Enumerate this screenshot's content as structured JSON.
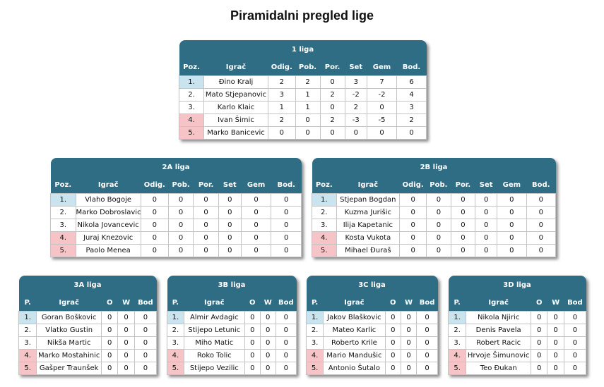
{
  "title": "Piramidalni pregled lige",
  "leagues": [
    {
      "name": "1 liga",
      "headers": [
        "Poz.",
        "Igrač",
        "Odig.",
        "Pob.",
        "Por.",
        "Set",
        "Gem",
        "Bod."
      ],
      "rows": [
        [
          "1.",
          "Đino Kralj",
          2,
          2,
          0,
          3,
          7,
          6
        ],
        [
          "2.",
          "Mato Stjepanovic",
          3,
          1,
          2,
          -2,
          -2,
          4
        ],
        [
          "3.",
          "Karlo Klaic",
          1,
          1,
          0,
          2,
          0,
          3
        ],
        [
          "4.",
          "Ivan Šimic",
          2,
          0,
          2,
          -3,
          -5,
          2
        ],
        [
          "5.",
          "Marko Banicevic",
          0,
          0,
          0,
          0,
          0,
          0
        ]
      ]
    },
    {
      "name": "2A liga",
      "headers": [
        "Poz.",
        "Igrač",
        "Odig.",
        "Pob.",
        "Por.",
        "Set",
        "Gem",
        "Bod."
      ],
      "rows": [
        [
          "1.",
          "Vlaho Bogoje",
          0,
          0,
          0,
          0,
          0,
          0
        ],
        [
          "2.",
          "Marko Dobroslavic",
          0,
          0,
          0,
          0,
          0,
          0
        ],
        [
          "3.",
          "Nikola Jovancevic",
          0,
          0,
          0,
          0,
          0,
          0
        ],
        [
          "4.",
          "Juraj Knezovic",
          0,
          0,
          0,
          0,
          0,
          0
        ],
        [
          "5.",
          "Paolo Menea",
          0,
          0,
          0,
          0,
          0,
          0
        ]
      ]
    },
    {
      "name": "2B liga",
      "headers": [
        "Poz.",
        "Igrač",
        "Odig.",
        "Pob.",
        "Por.",
        "Set",
        "Gem",
        "Bod."
      ],
      "rows": [
        [
          "1.",
          "Stjepan Bogdan",
          0,
          0,
          0,
          0,
          0,
          0
        ],
        [
          "2.",
          "Kuzma Jurišic",
          0,
          0,
          0,
          0,
          0,
          0
        ],
        [
          "3.",
          "Ilija Kapetanic",
          0,
          0,
          0,
          0,
          0,
          0
        ],
        [
          "4.",
          "Kosta Vukota",
          0,
          0,
          0,
          0,
          0,
          0
        ],
        [
          "5.",
          "Mihael Đuraš",
          0,
          0,
          0,
          0,
          0,
          0
        ]
      ]
    },
    {
      "name": "3A liga",
      "headers": [
        "P.",
        "Igrač",
        "O",
        "W",
        "Bod"
      ],
      "rows": [
        [
          "1.",
          "Goran Boškovic",
          0,
          0,
          0
        ],
        [
          "2.",
          "Vlatko Gustin",
          0,
          0,
          0
        ],
        [
          "3.",
          "Nikša Martic",
          0,
          0,
          0
        ],
        [
          "4.",
          "Marko Mostahinic",
          0,
          0,
          0
        ],
        [
          "5.",
          "Gašper Traunšek",
          0,
          0,
          0
        ]
      ]
    },
    {
      "name": "3B liga",
      "headers": [
        "P.",
        "Igrač",
        "O",
        "W",
        "Bod"
      ],
      "rows": [
        [
          "1.",
          "Almir Avdagic",
          0,
          0,
          0
        ],
        [
          "2.",
          "Stijepo Letunic",
          0,
          0,
          0
        ],
        [
          "3.",
          "Miho Matic",
          0,
          0,
          0
        ],
        [
          "4.",
          "Roko Tolic",
          0,
          0,
          0
        ],
        [
          "5.",
          "Stijepo Vezilic",
          0,
          0,
          0
        ]
      ]
    },
    {
      "name": "3C liga",
      "headers": [
        "P.",
        "Igrač",
        "O",
        "W",
        "Bod"
      ],
      "rows": [
        [
          "1.",
          "Jakov Blaškovic",
          0,
          0,
          0
        ],
        [
          "2.",
          "Mateo Karlic",
          0,
          0,
          0
        ],
        [
          "3.",
          "Roberto Krile",
          0,
          0,
          0
        ],
        [
          "4.",
          "Mario Mandušic",
          0,
          0,
          0
        ],
        [
          "5.",
          "Antonio Šutalo",
          0,
          0,
          0
        ]
      ]
    },
    {
      "name": "3D liga",
      "headers": [
        "P.",
        "Igrač",
        "O",
        "W",
        "Bod"
      ],
      "rows": [
        [
          "1.",
          "Nikola Njiric",
          0,
          0,
          0
        ],
        [
          "2.",
          "Denis Pavela",
          0,
          0,
          0
        ],
        [
          "3.",
          "Robert Racic",
          0,
          0,
          0
        ],
        [
          "4.",
          "Hrvoje Šimunovic",
          0,
          0,
          0
        ],
        [
          "5.",
          "Teo Đukan",
          0,
          0,
          0
        ]
      ]
    }
  ]
}
